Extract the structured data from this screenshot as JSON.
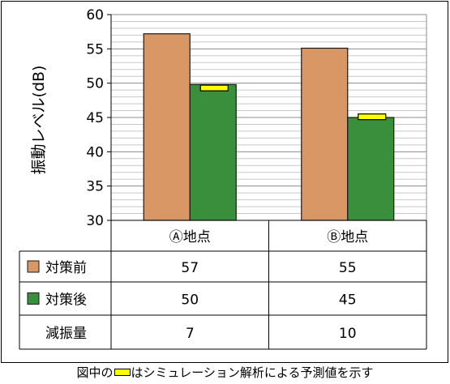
{
  "chart_data": {
    "type": "bar",
    "ylabel": "振動レベル(dB)",
    "ylim": [
      30,
      60
    ],
    "yticks": [
      30,
      35,
      40,
      45,
      50,
      55,
      60
    ],
    "minor_grid_step": 1,
    "categories": [
      "Ⓐ地点",
      "Ⓑ地点"
    ],
    "series": [
      {
        "name": "対策前",
        "values": [
          57.2,
          55.1
        ],
        "color": "#d99766"
      },
      {
        "name": "対策後",
        "values": [
          49.8,
          45.0
        ],
        "color": "#3a8f3c"
      }
    ],
    "simulation_values": [
      49.3,
      45.1
    ],
    "simulation_color": "#ffff00",
    "table": {
      "rows": [
        {
          "label": "対策前",
          "values": [
            "57",
            "55"
          ],
          "swatch": "#d99766"
        },
        {
          "label": "対策後",
          "values": [
            "50",
            "45"
          ],
          "swatch": "#3a8f3c"
        },
        {
          "label": "減振量",
          "values": [
            "7",
            "10"
          ],
          "swatch": null
        }
      ]
    }
  },
  "caption": {
    "before": "図中の",
    "after": "はシミュレーション解析による予測値を示す"
  }
}
